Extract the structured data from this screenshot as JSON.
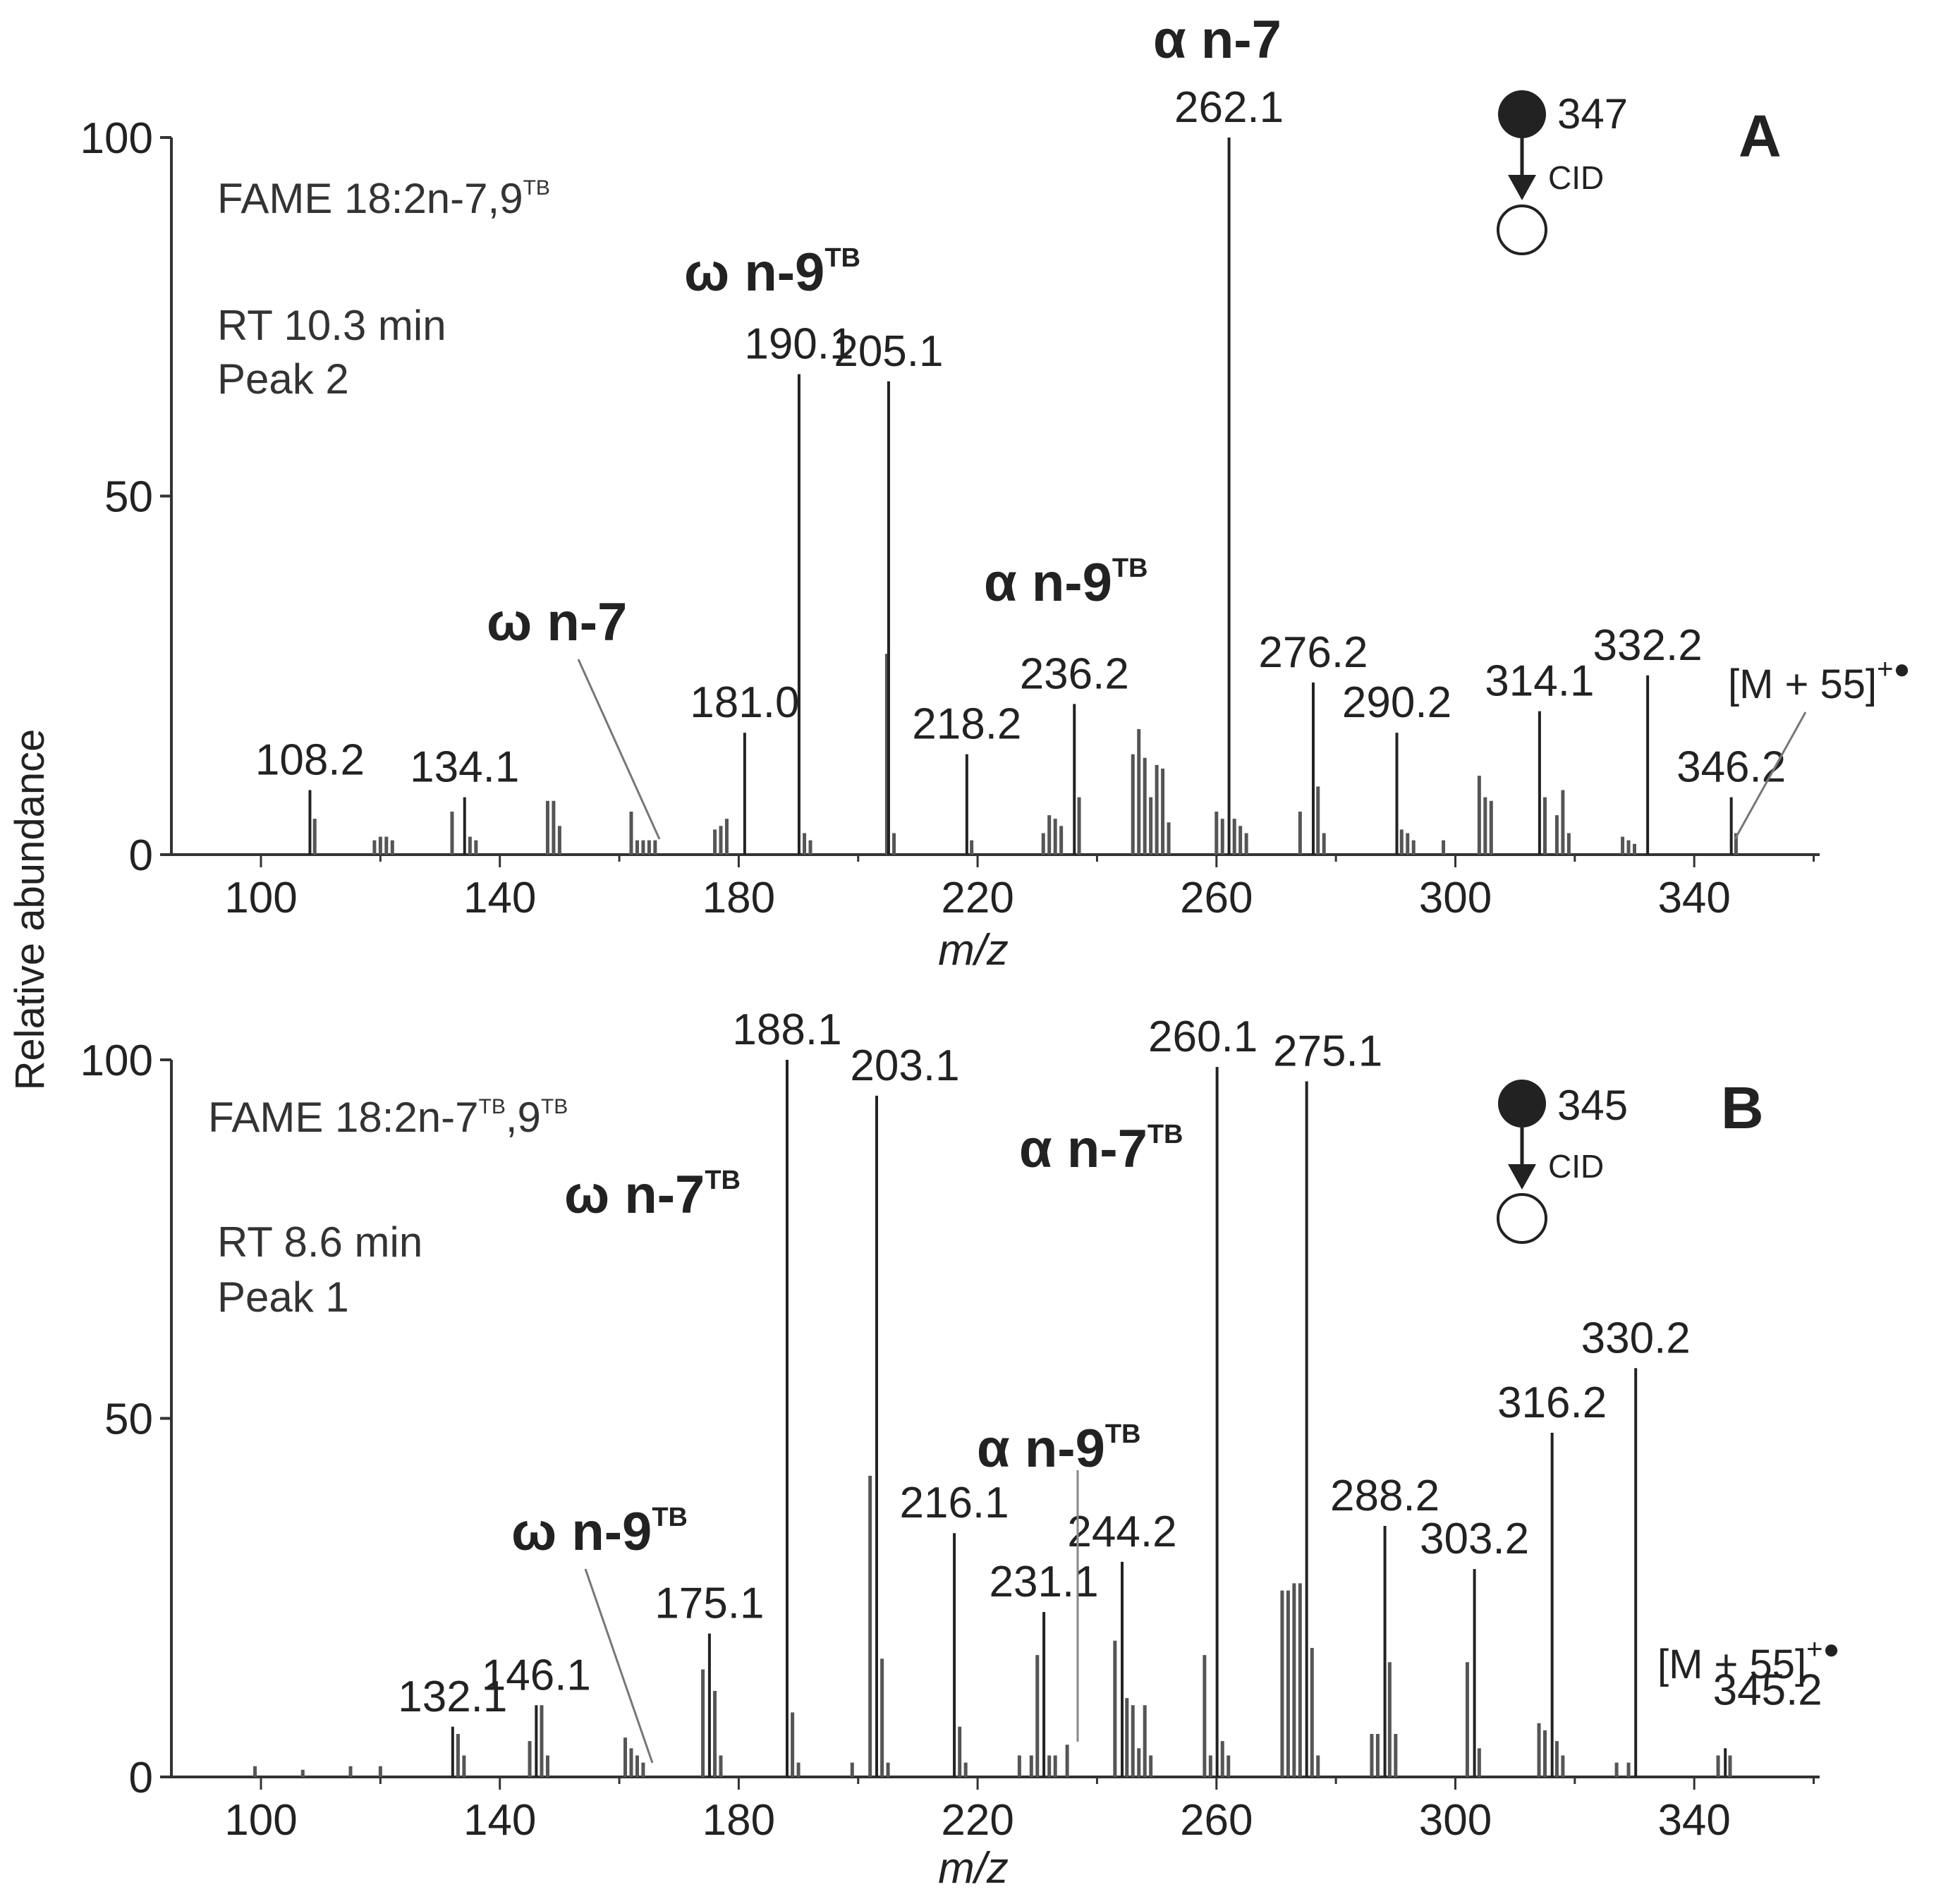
{
  "y_axis_label": "Relative abundance",
  "chart_data": [
    {
      "type": "bar",
      "panel": "A",
      "info_title": "FAME 18:2n-7,9",
      "info_title_sup": "TB",
      "retention": "RT 10.3 min",
      "peak_no": "Peak 2",
      "precursor": "347",
      "cid": "CID",
      "xlabel": "m/z",
      "ylabel": "Relative abundance",
      "xlim": [
        85,
        361
      ],
      "ylim": [
        0,
        100
      ],
      "xticks": [
        100,
        140,
        180,
        220,
        260,
        300,
        340
      ],
      "yticks": [
        0,
        50,
        100
      ],
      "labeled_peaks": [
        {
          "mz": 108.2,
          "label": "108.2",
          "intensity": 9
        },
        {
          "mz": 134.1,
          "label": "134.1",
          "intensity": 8
        },
        {
          "mz": 181.0,
          "label": "181.0",
          "intensity": 17
        },
        {
          "mz": 190.1,
          "label": "190.1",
          "intensity": 67
        },
        {
          "mz": 205.1,
          "label": "205.1",
          "intensity": 66
        },
        {
          "mz": 218.2,
          "label": "218.2",
          "intensity": 14
        },
        {
          "mz": 236.2,
          "label": "236.2",
          "intensity": 21
        },
        {
          "mz": 262.1,
          "label": "262.1",
          "intensity": 100
        },
        {
          "mz": 276.2,
          "label": "276.2",
          "intensity": 24
        },
        {
          "mz": 290.2,
          "label": "290.2",
          "intensity": 17
        },
        {
          "mz": 314.1,
          "label": "314.1",
          "intensity": 20
        },
        {
          "mz": 332.2,
          "label": "332.2",
          "intensity": 25
        },
        {
          "mz": 346.2,
          "label": "346.2",
          "intensity": 8
        }
      ],
      "minor_peaks": [
        {
          "mz": 109,
          "intensity": 5
        },
        {
          "mz": 119,
          "intensity": 2
        },
        {
          "mz": 120,
          "intensity": 2.5
        },
        {
          "mz": 121,
          "intensity": 2.5
        },
        {
          "mz": 122,
          "intensity": 2
        },
        {
          "mz": 132,
          "intensity": 6
        },
        {
          "mz": 135,
          "intensity": 2.5
        },
        {
          "mz": 136,
          "intensity": 2
        },
        {
          "mz": 148,
          "intensity": 7.5
        },
        {
          "mz": 149,
          "intensity": 7.5
        },
        {
          "mz": 150,
          "intensity": 4
        },
        {
          "mz": 162,
          "intensity": 6
        },
        {
          "mz": 163,
          "intensity": 2
        },
        {
          "mz": 164,
          "intensity": 2
        },
        {
          "mz": 165,
          "intensity": 2
        },
        {
          "mz": 166,
          "intensity": 2
        },
        {
          "mz": 176,
          "intensity": 3.5
        },
        {
          "mz": 177,
          "intensity": 4
        },
        {
          "mz": 178,
          "intensity": 5
        },
        {
          "mz": 191,
          "intensity": 3
        },
        {
          "mz": 192,
          "intensity": 2
        },
        {
          "mz": 204.8,
          "intensity": 28
        },
        {
          "mz": 206,
          "intensity": 3
        },
        {
          "mz": 219,
          "intensity": 2
        },
        {
          "mz": 231,
          "intensity": 3
        },
        {
          "mz": 232,
          "intensity": 5.5
        },
        {
          "mz": 233,
          "intensity": 5
        },
        {
          "mz": 234,
          "intensity": 4
        },
        {
          "mz": 237,
          "intensity": 8
        },
        {
          "mz": 246,
          "intensity": 14
        },
        {
          "mz": 247,
          "intensity": 17.5
        },
        {
          "mz": 248,
          "intensity": 13.5
        },
        {
          "mz": 249,
          "intensity": 8
        },
        {
          "mz": 250,
          "intensity": 12.5
        },
        {
          "mz": 251,
          "intensity": 12
        },
        {
          "mz": 252,
          "intensity": 4.5
        },
        {
          "mz": 260,
          "intensity": 6
        },
        {
          "mz": 261,
          "intensity": 5
        },
        {
          "mz": 263,
          "intensity": 5
        },
        {
          "mz": 264,
          "intensity": 4
        },
        {
          "mz": 265,
          "intensity": 3
        },
        {
          "mz": 274,
          "intensity": 6
        },
        {
          "mz": 277,
          "intensity": 9.5
        },
        {
          "mz": 278,
          "intensity": 3
        },
        {
          "mz": 291,
          "intensity": 3.5
        },
        {
          "mz": 292,
          "intensity": 3
        },
        {
          "mz": 293,
          "intensity": 2
        },
        {
          "mz": 298,
          "intensity": 2
        },
        {
          "mz": 304,
          "intensity": 11
        },
        {
          "mz": 305,
          "intensity": 8
        },
        {
          "mz": 306,
          "intensity": 7.5
        },
        {
          "mz": 315,
          "intensity": 8
        },
        {
          "mz": 317,
          "intensity": 5.5
        },
        {
          "mz": 318,
          "intensity": 9
        },
        {
          "mz": 319,
          "intensity": 3
        },
        {
          "mz": 328,
          "intensity": 2.5
        },
        {
          "mz": 329,
          "intensity": 2
        },
        {
          "mz": 330,
          "intensity": 1.5
        },
        {
          "mz": 347,
          "intensity": 3
        }
      ],
      "annotations": [
        {
          "text": "α n-7",
          "sup": ""
        },
        {
          "text": "ω n-9",
          "sup": "TB"
        },
        {
          "text": "α n-9",
          "sup": "TB"
        },
        {
          "text": "ω n-7",
          "sup": ""
        }
      ],
      "molecular_ion_label": "[M + 55]",
      "molecular_ion_sup": "+●"
    },
    {
      "type": "bar",
      "panel": "B",
      "info_title": "FAME 18:2n-7",
      "info_title_sup1": "TB",
      "info_title_mid": ",9",
      "info_title_sup2": "TB",
      "retention": "RT 8.6 min",
      "peak_no": "Peak 1",
      "precursor": "345",
      "cid": "CID",
      "xlabel": "m/z",
      "ylabel": "Relative abundance",
      "xlim": [
        85,
        361
      ],
      "ylim": [
        0,
        100
      ],
      "xticks": [
        100,
        140,
        180,
        220,
        260,
        300,
        340
      ],
      "yticks": [
        0,
        50,
        100
      ],
      "labeled_peaks": [
        {
          "mz": 132.1,
          "label": "132.1",
          "intensity": 7
        },
        {
          "mz": 146.1,
          "label": "146.1",
          "intensity": 10
        },
        {
          "mz": 175.1,
          "label": "175.1",
          "intensity": 20
        },
        {
          "mz": 188.1,
          "label": "188.1",
          "intensity": 100
        },
        {
          "mz": 203.1,
          "label": "203.1",
          "intensity": 95
        },
        {
          "mz": 216.1,
          "label": "216.1",
          "intensity": 34
        },
        {
          "mz": 231.1,
          "label": "231.1",
          "intensity": 23
        },
        {
          "mz": 244.2,
          "label": "244.2",
          "intensity": 30
        },
        {
          "mz": 260.1,
          "label": "260.1",
          "intensity": 99
        },
        {
          "mz": 275.1,
          "label": "275.1",
          "intensity": 97
        },
        {
          "mz": 288.2,
          "label": "288.2",
          "intensity": 35
        },
        {
          "mz": 303.2,
          "label": "303.2",
          "intensity": 29
        },
        {
          "mz": 316.2,
          "label": "316.2",
          "intensity": 48
        },
        {
          "mz": 330.2,
          "label": "330.2",
          "intensity": 57
        },
        {
          "mz": 345.2,
          "label": "345.2",
          "intensity": 4
        }
      ],
      "minor_peaks": [
        {
          "mz": 99,
          "intensity": 1.5
        },
        {
          "mz": 107,
          "intensity": 1
        },
        {
          "mz": 115,
          "intensity": 1.5
        },
        {
          "mz": 120,
          "intensity": 1.5
        },
        {
          "mz": 133,
          "intensity": 6
        },
        {
          "mz": 134,
          "intensity": 3
        },
        {
          "mz": 145,
          "intensity": 5
        },
        {
          "mz": 147,
          "intensity": 10
        },
        {
          "mz": 148,
          "intensity": 3
        },
        {
          "mz": 161,
          "intensity": 5.5
        },
        {
          "mz": 162,
          "intensity": 4
        },
        {
          "mz": 163,
          "intensity": 3
        },
        {
          "mz": 164,
          "intensity": 2
        },
        {
          "mz": 174,
          "intensity": 15
        },
        {
          "mz": 176,
          "intensity": 12
        },
        {
          "mz": 177,
          "intensity": 3
        },
        {
          "mz": 189,
          "intensity": 9
        },
        {
          "mz": 190,
          "intensity": 2
        },
        {
          "mz": 199,
          "intensity": 2
        },
        {
          "mz": 202,
          "intensity": 42
        },
        {
          "mz": 204,
          "intensity": 16.5
        },
        {
          "mz": 205,
          "intensity": 2
        },
        {
          "mz": 217,
          "intensity": 7
        },
        {
          "mz": 218,
          "intensity": 2
        },
        {
          "mz": 227,
          "intensity": 3
        },
        {
          "mz": 229,
          "intensity": 3
        },
        {
          "mz": 230,
          "intensity": 17
        },
        {
          "mz": 232,
          "intensity": 3
        },
        {
          "mz": 233,
          "intensity": 3
        },
        {
          "mz": 235,
          "intensity": 4.5
        },
        {
          "mz": 243,
          "intensity": 19
        },
        {
          "mz": 245,
          "intensity": 11
        },
        {
          "mz": 246,
          "intensity": 10
        },
        {
          "mz": 247,
          "intensity": 4
        },
        {
          "mz": 248,
          "intensity": 10
        },
        {
          "mz": 249,
          "intensity": 3
        },
        {
          "mz": 258,
          "intensity": 17
        },
        {
          "mz": 259,
          "intensity": 3
        },
        {
          "mz": 261,
          "intensity": 5
        },
        {
          "mz": 262,
          "intensity": 3
        },
        {
          "mz": 271,
          "intensity": 26
        },
        {
          "mz": 272,
          "intensity": 26
        },
        {
          "mz": 273,
          "intensity": 27
        },
        {
          "mz": 274,
          "intensity": 27
        },
        {
          "mz": 276,
          "intensity": 18
        },
        {
          "mz": 277,
          "intensity": 3
        },
        {
          "mz": 286,
          "intensity": 6
        },
        {
          "mz": 287,
          "intensity": 6
        },
        {
          "mz": 289,
          "intensity": 16
        },
        {
          "mz": 290,
          "intensity": 6
        },
        {
          "mz": 302,
          "intensity": 16
        },
        {
          "mz": 304,
          "intensity": 4
        },
        {
          "mz": 314,
          "intensity": 7.5
        },
        {
          "mz": 315,
          "intensity": 6.5
        },
        {
          "mz": 317,
          "intensity": 5
        },
        {
          "mz": 318,
          "intensity": 3
        },
        {
          "mz": 327,
          "intensity": 2
        },
        {
          "mz": 329,
          "intensity": 2
        },
        {
          "mz": 344,
          "intensity": 3
        },
        {
          "mz": 346,
          "intensity": 3
        }
      ],
      "annotations": [
        {
          "text": "ω n-7",
          "sup": "TB"
        },
        {
          "text": "α n-7",
          "sup": "TB"
        },
        {
          "text": "α n-9",
          "sup": "TB"
        },
        {
          "text": "ω n-9",
          "sup": "TB"
        }
      ],
      "molecular_ion_label": "[M + 55]",
      "molecular_ion_sup": "+●"
    }
  ]
}
